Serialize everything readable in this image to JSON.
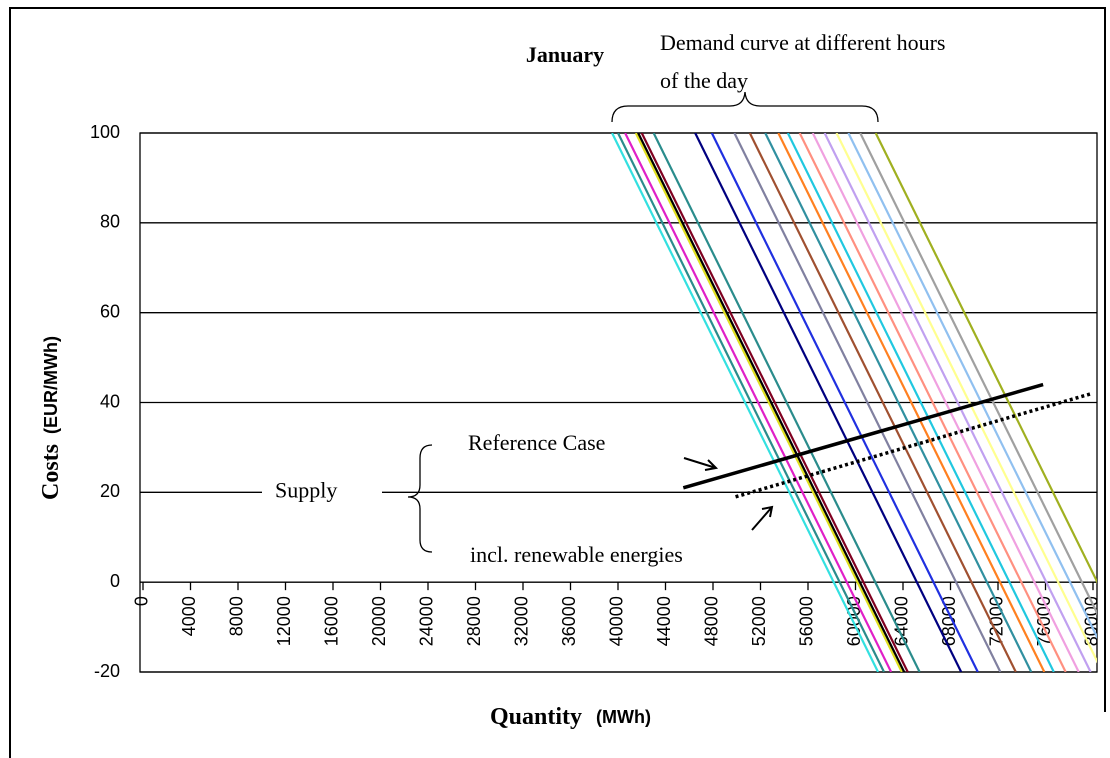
{
  "chart_data": {
    "type": "line",
    "title": "January",
    "annotation": [
      "Demand curve at different hours",
      "of the day"
    ],
    "supply_label": "Supply",
    "x_label": "Quantity",
    "x_unit": "(MWh)",
    "y_label": "Costs",
    "y_unit": "(EUR/MWh)",
    "xlim": [
      0,
      80000
    ],
    "xticks": [
      0,
      4000,
      8000,
      12000,
      16000,
      20000,
      24000,
      28000,
      32000,
      36000,
      40000,
      44000,
      48000,
      52000,
      56000,
      60000,
      64000,
      68000,
      72000,
      76000,
      80000
    ],
    "ylim": [
      -20,
      100
    ],
    "yticks": [
      -20,
      0,
      20,
      40,
      60,
      80,
      100
    ],
    "grid": true,
    "series": [
      {
        "color": "#33e0e0",
        "x": [
          39500,
          61900
        ],
        "values": [
          100,
          -20
        ]
      },
      {
        "color": "#2a8c8c",
        "x": [
          40000,
          62400
        ],
        "values": [
          100,
          -20
        ]
      },
      {
        "color": "#e020c8",
        "x": [
          40600,
          63000
        ],
        "values": [
          100,
          -20
        ]
      },
      {
        "color": "#e0e020",
        "x": [
          41500,
          63900
        ],
        "values": [
          100,
          -20
        ]
      },
      {
        "color": "#000000",
        "x": [
          41700,
          64100
        ],
        "values": [
          100,
          -20
        ]
      },
      {
        "color": "#800020",
        "x": [
          42000,
          64400
        ],
        "values": [
          100,
          -20
        ]
      },
      {
        "color": "#2a8c8c",
        "x": [
          43000,
          65400
        ],
        "values": [
          100,
          -20
        ]
      },
      {
        "color": "#000080",
        "x": [
          46500,
          68900
        ],
        "values": [
          100,
          -20
        ]
      },
      {
        "color": "#2030e0",
        "x": [
          47900,
          70300
        ],
        "values": [
          100,
          -20
        ]
      },
      {
        "color": "#8080a0",
        "x": [
          49800,
          72200
        ],
        "values": [
          100,
          -20
        ]
      },
      {
        "color": "#a05030",
        "x": [
          51100,
          73500
        ],
        "values": [
          100,
          -20
        ]
      },
      {
        "color": "#3090a0",
        "x": [
          52400,
          74800
        ],
        "values": [
          100,
          -20
        ]
      },
      {
        "color": "#ff8020",
        "x": [
          53500,
          75900
        ],
        "values": [
          100,
          -20
        ]
      },
      {
        "color": "#20c8e0",
        "x": [
          54300,
          76700
        ],
        "values": [
          100,
          -20
        ]
      },
      {
        "color": "#ff9080",
        "x": [
          55300,
          77700
        ],
        "values": [
          100,
          -20
        ]
      },
      {
        "color": "#f0a0e0",
        "x": [
          56400,
          78800
        ],
        "values": [
          100,
          -20
        ]
      },
      {
        "color": "#c0a0f0",
        "x": [
          57400,
          79800
        ],
        "values": [
          100,
          -20
        ]
      },
      {
        "color": "#ffff90",
        "x": [
          58400,
          80800
        ],
        "values": [
          100,
          -20
        ]
      },
      {
        "color": "#90c0f0",
        "x": [
          59400,
          81800
        ],
        "values": [
          100,
          -20
        ]
      },
      {
        "color": "#a0a0a0",
        "x": [
          60400,
          82800
        ],
        "values": [
          100,
          -20
        ]
      },
      {
        "color": "#a0b020",
        "x": [
          61700,
          84100
        ],
        "values": [
          100,
          -20
        ]
      },
      {
        "name": "Reference Case",
        "color": "#000000",
        "x": [
          45500,
          75800
        ],
        "values": [
          21,
          44
        ]
      },
      {
        "name": "incl. renewable energies",
        "color": "#000000",
        "dashed": true,
        "x": [
          49900,
          79900
        ],
        "values": [
          19,
          42
        ]
      }
    ]
  }
}
